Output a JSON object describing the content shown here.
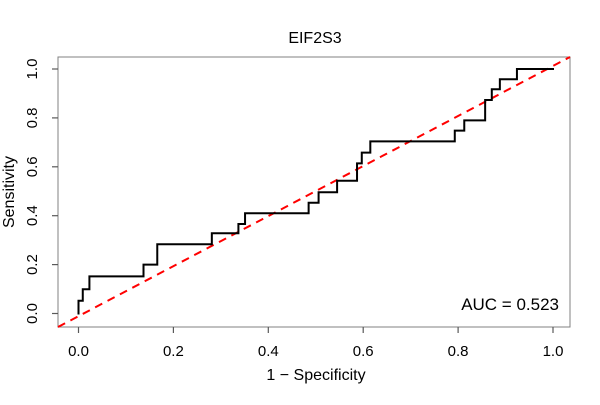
{
  "figure": {
    "title": "EIF2S3",
    "auc_annotation": "AUC = 0.523"
  },
  "chart_data": {
    "type": "line",
    "subtype": "roc-curve-step",
    "title": "EIF2S3",
    "xlabel": "1 − Specificity",
    "ylabel": "Sensitivity",
    "xlim": [
      0.0,
      1.0
    ],
    "ylim": [
      0.0,
      1.0
    ],
    "x_ticks": [
      "0.0",
      "0.2",
      "0.4",
      "0.6",
      "0.8",
      "1.0"
    ],
    "y_ticks": [
      "0.0",
      "0.2",
      "0.4",
      "0.6",
      "0.8",
      "1.0"
    ],
    "grid": false,
    "legend": "none",
    "auc": 0.523,
    "annotations": [
      {
        "text": "AUC = 0.523",
        "position": "bottom-right-inside"
      }
    ],
    "series": [
      {
        "name": "ROC curve",
        "draw": "step",
        "color": "#000000",
        "width": 2,
        "dash": "solid",
        "points": [
          [
            0,
            0
          ],
          [
            0,
            0.052
          ],
          [
            0.009,
            0.052
          ],
          [
            0.009,
            0.099
          ],
          [
            0.023,
            0.099
          ],
          [
            0.023,
            0.152
          ],
          [
            0.137,
            0.152
          ],
          [
            0.137,
            0.2
          ],
          [
            0.166,
            0.2
          ],
          [
            0.166,
            0.283
          ],
          [
            0.281,
            0.283
          ],
          [
            0.281,
            0.328
          ],
          [
            0.337,
            0.328
          ],
          [
            0.337,
            0.366
          ],
          [
            0.351,
            0.366
          ],
          [
            0.351,
            0.41
          ],
          [
            0.485,
            0.41
          ],
          [
            0.485,
            0.453
          ],
          [
            0.506,
            0.453
          ],
          [
            0.506,
            0.496
          ],
          [
            0.545,
            0.496
          ],
          [
            0.545,
            0.543
          ],
          [
            0.587,
            0.543
          ],
          [
            0.587,
            0.614
          ],
          [
            0.597,
            0.614
          ],
          [
            0.597,
            0.658
          ],
          [
            0.615,
            0.658
          ],
          [
            0.615,
            0.704
          ],
          [
            0.793,
            0.704
          ],
          [
            0.793,
            0.748
          ],
          [
            0.813,
            0.748
          ],
          [
            0.813,
            0.79
          ],
          [
            0.857,
            0.79
          ],
          [
            0.857,
            0.873
          ],
          [
            0.871,
            0.873
          ],
          [
            0.871,
            0.917
          ],
          [
            0.888,
            0.917
          ],
          [
            0.888,
            0.958
          ],
          [
            0.924,
            0.958
          ],
          [
            0.924,
            1
          ],
          [
            1,
            1
          ]
        ]
      },
      {
        "name": "Chance diagonal",
        "draw": "line",
        "color": "#FF0000",
        "width": 2,
        "dash": "dashed",
        "spans_full_plot_box": true,
        "points": [
          [
            0,
            0
          ],
          [
            1,
            1
          ]
        ]
      }
    ]
  },
  "style": {
    "background": "#ffffff",
    "box_color": "#808080",
    "tick_color": "#595959",
    "text_color": "#000000"
  }
}
